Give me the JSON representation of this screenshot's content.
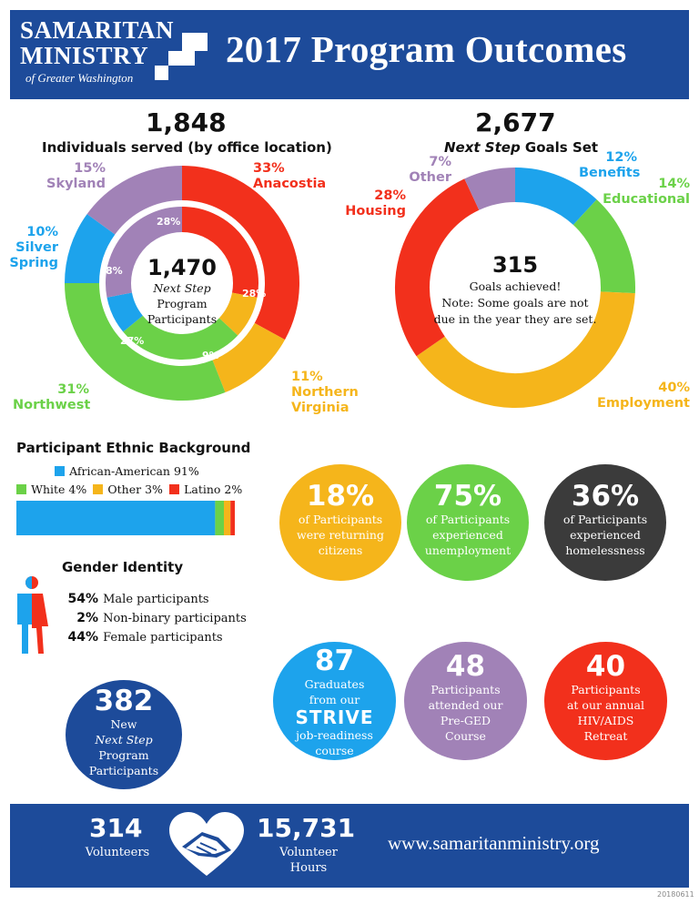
{
  "header": {
    "logo_line1": "SAMARITAN",
    "logo_line2": "MINISTRY",
    "logo_line3": "of Greater Washington",
    "title": "2017 Program Outcomes"
  },
  "colors": {
    "navy": "#1d4b9a",
    "red": "#f2301c",
    "yellow": "#f5b51b",
    "green": "#6bd148",
    "blue": "#1da3ec",
    "purple": "#a182b7",
    "dark": "#3b3b3b"
  },
  "individuals": {
    "total": "1,848",
    "subtitle": "Individuals served (by office location)",
    "center_number": "1,470",
    "center_line1": "Next Step",
    "center_line2": "Program",
    "center_line3": "Participants",
    "labels": {
      "anacostia_pct": "33%",
      "anacostia_name": "Anacostia",
      "nova_pct": "11%",
      "nova_name1": "Northern",
      "nova_name2": "Virginia",
      "northwest_pct": "31%",
      "northwest_name": "Northwest",
      "silver_pct": "10%",
      "silver_name1": "Silver",
      "silver_name2": "Spring",
      "skyland_pct": "15%",
      "skyland_name": "Skyland"
    },
    "inner_labels": {
      "red": "28%",
      "yellow": "9%",
      "green": "27%",
      "blue": "8%",
      "purple": "28%"
    }
  },
  "goals": {
    "total": "2,677",
    "subtitle_italic": "Next Step",
    "subtitle_rest": "Goals Set",
    "center_number": "315",
    "center_line1": "Goals achieved!",
    "center_line2": "Note: Some goals are not",
    "center_line3": "due in the year they are set.",
    "labels": {
      "benefits_pct": "12%",
      "benefits_name": "Benefits",
      "educational_pct": "14%",
      "educational_name": "Educational",
      "employment_pct": "40%",
      "employment_name": "Employment",
      "housing_pct": "28%",
      "housing_name": "Housing",
      "other_pct": "7%",
      "other_name": "Other"
    }
  },
  "chart_data": [
    {
      "type": "pie",
      "title": "Individuals served (by office location)",
      "variant": "donut-outer",
      "categories": [
        "Anacostia",
        "Northern Virginia",
        "Northwest",
        "Silver Spring",
        "Skyland"
      ],
      "values": [
        33,
        11,
        31,
        10,
        15
      ],
      "colors": [
        "#f2301c",
        "#f5b51b",
        "#6bd148",
        "#1da3ec",
        "#a182b7"
      ]
    },
    {
      "type": "pie",
      "title": "Next Step Program Participants",
      "variant": "donut-inner",
      "categories": [
        "Anacostia",
        "Northern Virginia",
        "Northwest",
        "Silver Spring",
        "Skyland"
      ],
      "values": [
        28,
        9,
        27,
        8,
        28
      ],
      "colors": [
        "#f2301c",
        "#f5b51b",
        "#6bd148",
        "#1da3ec",
        "#a182b7"
      ]
    },
    {
      "type": "pie",
      "title": "Next Step Goals Set",
      "variant": "donut",
      "categories": [
        "Benefits",
        "Educational",
        "Employment",
        "Housing",
        "Other"
      ],
      "values": [
        12,
        14,
        40,
        28,
        7
      ],
      "colors": [
        "#1da3ec",
        "#6bd148",
        "#f5b51b",
        "#f2301c",
        "#a182b7"
      ]
    },
    {
      "type": "bar",
      "variant": "stacked-horizontal",
      "title": "Participant Ethnic Background",
      "categories": [
        "African-American",
        "White",
        "Other",
        "Latino"
      ],
      "values": [
        91,
        4,
        3,
        2
      ],
      "colors": [
        "#1da3ec",
        "#6bd148",
        "#f5b51b",
        "#f2301c"
      ]
    }
  ],
  "ethnic": {
    "title": "Participant Ethnic Background",
    "legend": [
      {
        "label": "African-American 91%",
        "color": "#1da3ec"
      },
      {
        "label": "White 4%",
        "color": "#6bd148"
      },
      {
        "label": "Other 3%",
        "color": "#f5b51b"
      },
      {
        "label": "Latino 2%",
        "color": "#f2301c"
      }
    ]
  },
  "gender": {
    "title": "Gender Identity",
    "rows": [
      {
        "pct": "54%",
        "label": "Male participants"
      },
      {
        "pct": "2%",
        "label": "Non-binary participants"
      },
      {
        "pct": "44%",
        "label": "Female participants"
      }
    ]
  },
  "bubbles": [
    {
      "num": "18%",
      "lines": [
        "of Participants",
        "were returning",
        "citizens"
      ],
      "color": "#f5b51b"
    },
    {
      "num": "75%",
      "lines": [
        "of Participants",
        "experienced",
        "unemployment"
      ],
      "color": "#6bd148"
    },
    {
      "num": "36%",
      "lines": [
        "of Participants",
        "experienced",
        "homelessness"
      ],
      "color": "#3b3b3b"
    },
    {
      "num": "87",
      "lines": [
        "Graduates",
        "from our"
      ],
      "brand": "STRIVE",
      "lines_after": [
        "job-readiness",
        "course"
      ],
      "color": "#1da3ec"
    },
    {
      "num": "48",
      "lines": [
        "Participants",
        "attended our",
        "Pre-GED",
        "Course"
      ],
      "color": "#a182b7"
    },
    {
      "num": "40",
      "lines": [
        "Participants",
        "at our annual",
        "HIV/AIDS",
        "Retreat"
      ],
      "color": "#f2301c"
    },
    {
      "num": "382",
      "lines": [
        "New",
        "Next Step",
        "Program",
        "Participants"
      ],
      "color": "#1d4b9a"
    }
  ],
  "footer": {
    "volunteers_num": "314",
    "volunteers_label": "Volunteers",
    "hours_num": "15,731",
    "hours_label1": "Volunteer",
    "hours_label2": "Hours",
    "website": "www.samaritanministry.org"
  },
  "doc_code": "20180611"
}
